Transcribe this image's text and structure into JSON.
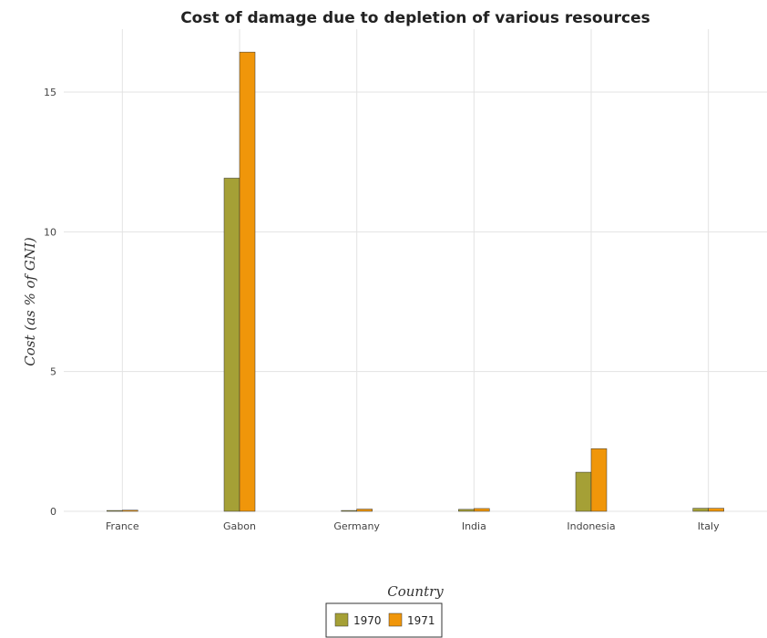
{
  "chart_data": {
    "type": "bar",
    "title": "Cost of damage due to depletion of various resources",
    "xlabel": "Country",
    "ylabel": "Cost (as % of GNI)",
    "categories": [
      "France",
      "Gabon",
      "Germany",
      "India",
      "Indonesia",
      "Italy"
    ],
    "series": [
      {
        "name": "1970",
        "color": "#a5a036",
        "values": [
          0.03,
          11.92,
          0.03,
          0.07,
          1.4,
          0.11
        ]
      },
      {
        "name": "1971",
        "color": "#f0960a",
        "values": [
          0.04,
          16.43,
          0.08,
          0.1,
          2.24,
          0.11
        ]
      }
    ],
    "yticks": [
      0,
      5,
      10,
      15
    ],
    "ylim": [
      0,
      17.25
    ],
    "grid": true,
    "legend_position": "bottom-center"
  }
}
